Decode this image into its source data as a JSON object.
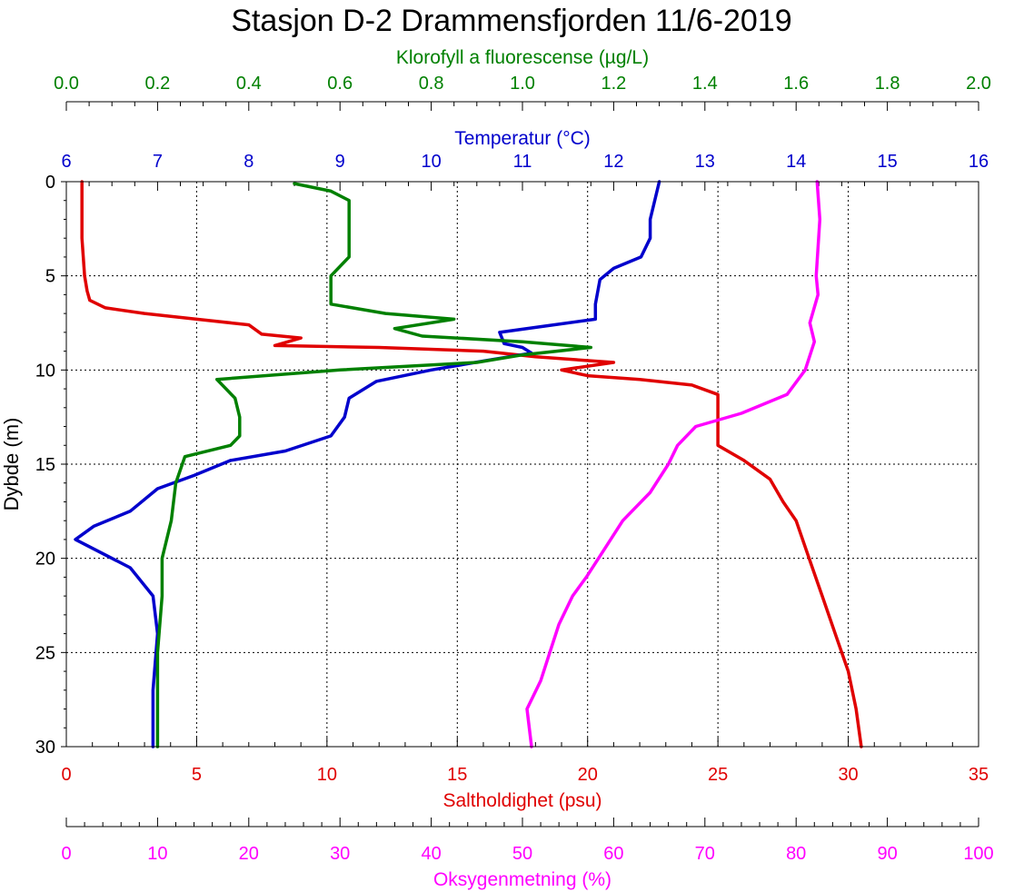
{
  "chart_data": {
    "type": "line",
    "title": "Stasjon D-2 Drammensfjorden 11/6-2019",
    "ylabel": "Dybde (m)",
    "y_inverted": true,
    "ylim": [
      0,
      30
    ],
    "yticks": [
      "0",
      "5",
      "10",
      "15",
      "20",
      "25",
      "30"
    ],
    "grid": true,
    "axes": {
      "chlorophyll": {
        "label": "Klorofyll a fluorescense (µg/L)",
        "color": "#008000",
        "position": "top-outer",
        "range": [
          0.0,
          2.0
        ],
        "ticks": [
          "0.0",
          "0.2",
          "0.4",
          "0.6",
          "0.8",
          "1.0",
          "1.2",
          "1.4",
          "1.6",
          "1.8",
          "2.0"
        ]
      },
      "temperature": {
        "label": "Temperatur (°C)",
        "color": "#0000cc",
        "position": "top-inner",
        "range": [
          6,
          16
        ],
        "ticks": [
          "6",
          "7",
          "8",
          "9",
          "10",
          "11",
          "12",
          "13",
          "14",
          "15",
          "16"
        ]
      },
      "salinity": {
        "label": "Saltholdighet (psu)",
        "color": "#e00000",
        "position": "bottom-inner",
        "range": [
          0,
          35
        ],
        "ticks": [
          "0",
          "5",
          "10",
          "15",
          "20",
          "25",
          "30",
          "35"
        ]
      },
      "oxygen": {
        "label": "Oksygenmetning (%)",
        "color": "#ff00ff",
        "position": "bottom-outer",
        "range": [
          0,
          100
        ],
        "ticks": [
          "0",
          "10",
          "20",
          "30",
          "40",
          "50",
          "60",
          "70",
          "80",
          "90",
          "100"
        ]
      }
    },
    "series": [
      {
        "axis": "salinity",
        "color": "#e00000",
        "points": [
          [
            0.6,
            0
          ],
          [
            0.6,
            3
          ],
          [
            0.7,
            5
          ],
          [
            0.8,
            5.8
          ],
          [
            0.9,
            6.3
          ],
          [
            1.5,
            6.7
          ],
          [
            3,
            7
          ],
          [
            5,
            7.3
          ],
          [
            7,
            7.6
          ],
          [
            7.5,
            8.1
          ],
          [
            9,
            8.3
          ],
          [
            8,
            8.7
          ],
          [
            12,
            8.8
          ],
          [
            16,
            9
          ],
          [
            18,
            9.3
          ],
          [
            21,
            9.6
          ],
          [
            19,
            10
          ],
          [
            20,
            10.3
          ],
          [
            22,
            10.5
          ],
          [
            24,
            10.8
          ],
          [
            25,
            11.3
          ],
          [
            25,
            14
          ],
          [
            26,
            14.8
          ],
          [
            27,
            15.8
          ],
          [
            27.5,
            17
          ],
          [
            28,
            18
          ],
          [
            28.5,
            20
          ],
          [
            29,
            22
          ],
          [
            29.5,
            24
          ],
          [
            30,
            26
          ],
          [
            30.3,
            28
          ],
          [
            30.5,
            30
          ]
        ]
      },
      {
        "axis": "temperature",
        "color": "#0000cc",
        "points": [
          [
            12.5,
            0
          ],
          [
            12.4,
            2
          ],
          [
            12.4,
            3
          ],
          [
            12.3,
            4
          ],
          [
            12.0,
            4.6
          ],
          [
            11.85,
            5.2
          ],
          [
            11.8,
            6.5
          ],
          [
            11.8,
            7.3
          ],
          [
            11.2,
            7.7
          ],
          [
            10.75,
            8
          ],
          [
            10.8,
            8.6
          ],
          [
            11,
            8.8
          ],
          [
            11.1,
            9.1
          ],
          [
            10.6,
            9.5
          ],
          [
            10.0,
            10
          ],
          [
            9.4,
            10.6
          ],
          [
            9.1,
            11.5
          ],
          [
            9.05,
            12.5
          ],
          [
            8.9,
            13.5
          ],
          [
            8.4,
            14.3
          ],
          [
            7.8,
            14.8
          ],
          [
            7.4,
            15.6
          ],
          [
            7.0,
            16.3
          ],
          [
            6.7,
            17.5
          ],
          [
            6.3,
            18.3
          ],
          [
            6.1,
            19
          ],
          [
            6.7,
            20.5
          ],
          [
            6.95,
            22
          ],
          [
            7.0,
            24
          ],
          [
            6.95,
            27
          ],
          [
            6.95,
            30
          ]
        ]
      },
      {
        "axis": "chlorophyll",
        "color": "#008000",
        "points": [
          [
            0.5,
            0.1
          ],
          [
            0.58,
            0.5
          ],
          [
            0.62,
            1
          ],
          [
            0.62,
            3
          ],
          [
            0.62,
            4
          ],
          [
            0.58,
            5
          ],
          [
            0.58,
            6.5
          ],
          [
            0.7,
            7
          ],
          [
            0.85,
            7.3
          ],
          [
            0.72,
            7.8
          ],
          [
            0.78,
            8.2
          ],
          [
            1.0,
            8.5
          ],
          [
            1.15,
            8.8
          ],
          [
            1.0,
            9.2
          ],
          [
            0.9,
            9.6
          ],
          [
            0.6,
            10
          ],
          [
            0.33,
            10.5
          ],
          [
            0.37,
            11.5
          ],
          [
            0.38,
            12.5
          ],
          [
            0.38,
            13.5
          ],
          [
            0.36,
            14
          ],
          [
            0.26,
            14.6
          ],
          [
            0.24,
            16
          ],
          [
            0.23,
            18
          ],
          [
            0.21,
            20
          ],
          [
            0.21,
            22
          ],
          [
            0.2,
            25
          ],
          [
            0.2,
            30
          ]
        ]
      },
      {
        "axis": "oxygen",
        "color": "#ff00ff",
        "points": [
          [
            82.3,
            0
          ],
          [
            82.6,
            2
          ],
          [
            82.2,
            5
          ],
          [
            82.4,
            6
          ],
          [
            81.5,
            7.5
          ],
          [
            82,
            8.5
          ],
          [
            81,
            10
          ],
          [
            79,
            11.3
          ],
          [
            74,
            12.3
          ],
          [
            69,
            13
          ],
          [
            67,
            14
          ],
          [
            66,
            15
          ],
          [
            64,
            16.5
          ],
          [
            61,
            18
          ],
          [
            59,
            19.5
          ],
          [
            57,
            21
          ],
          [
            55.5,
            22
          ],
          [
            54,
            23.5
          ],
          [
            53,
            25
          ],
          [
            52,
            26.5
          ],
          [
            50.5,
            28
          ],
          [
            51,
            30
          ]
        ]
      }
    ]
  }
}
